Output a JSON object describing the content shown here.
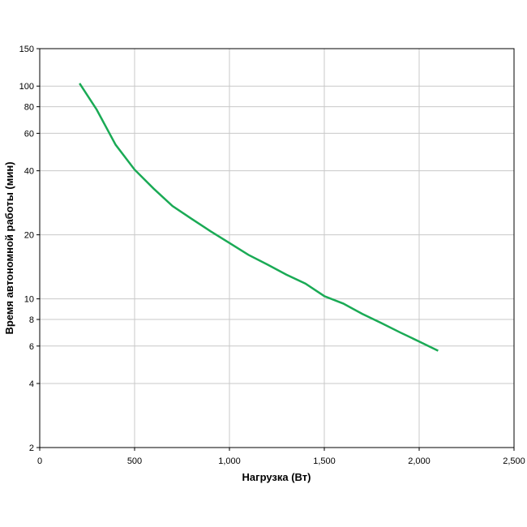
{
  "chart_data": {
    "type": "line",
    "x_label": "Нагрузка (Вт)",
    "y_label": "Время автономной работы (мин)",
    "x": [
      210,
      300,
      400,
      500,
      600,
      700,
      800,
      900,
      1000,
      1100,
      1200,
      1300,
      1400,
      1500,
      1600,
      1700,
      1800,
      1900,
      2000,
      2100
    ],
    "series": [
      {
        "name": "Время автономной работы",
        "color": "#1aaa55",
        "values": [
          103,
          77.6,
          53,
          40.5,
          33,
          27.3,
          23.8,
          20.8,
          18.3,
          16.1,
          14.5,
          13,
          11.8,
          10.3,
          9.5,
          8.5,
          7.7,
          6.95,
          6.3,
          5.7
        ]
      }
    ],
    "xlim": [
      0,
      2500
    ],
    "xticks": [
      0,
      500,
      {
        "value": 1000,
        "label": "1,000"
      },
      {
        "value": 1500,
        "label": "1,500"
      },
      {
        "value": 2000,
        "label": "2,000"
      },
      {
        "value": 2500,
        "label": "2,500"
      }
    ],
    "ylim": [
      2,
      150
    ],
    "yticks": [
      2,
      4,
      6,
      8,
      10,
      20,
      40,
      60,
      80,
      100,
      150
    ],
    "y_log": true,
    "grid": true
  }
}
